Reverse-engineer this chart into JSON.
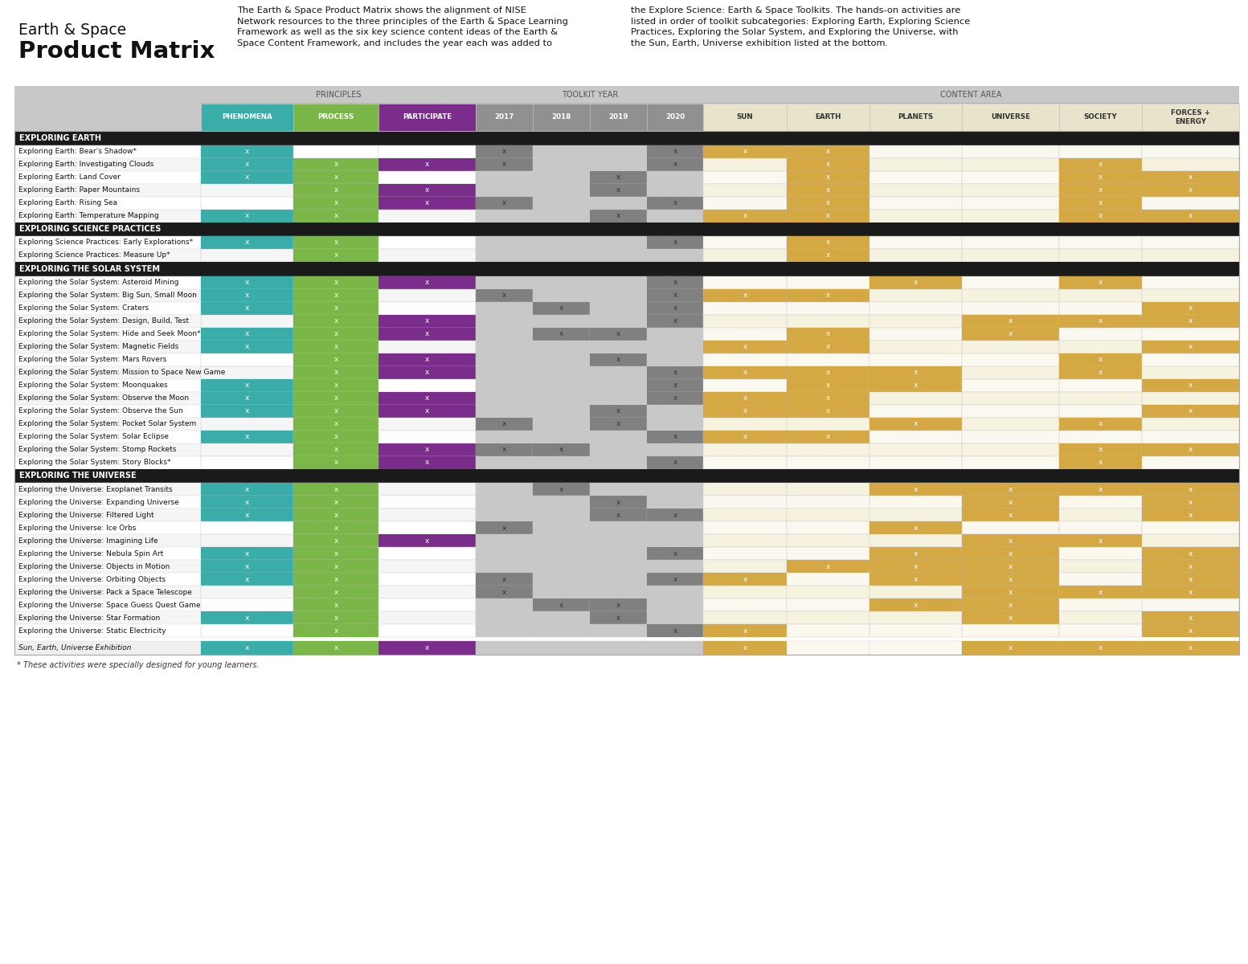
{
  "title_line1": "Earth & Space",
  "title_line2": "Product Matrix",
  "description_left": "The Earth & Space Product Matrix shows the alignment of NISE\nNetwork resources to the three principles of the Earth & Space Learning\nFramework as well as the six key science content ideas of the Earth &\nSpace Content Framework, and includes the year each was added to",
  "description_right": "the Explore Science: Earth & Space Toolkits. The hands-on activities are\nlisted in order of toolkit subcategories: Exploring Earth, Exploring Science\nPractices, Exploring the Solar System, and Exploring the Universe, with\nthe Sun, Earth, Universe exhibition listed at the bottom.",
  "footnote": "* These activities were specially designed for young learners.",
  "col_headers": [
    "PHENOMENA",
    "PROCESS",
    "PARTICIPATE",
    "2017",
    "2018",
    "2019",
    "2020",
    "SUN",
    "EARTH",
    "PLANETS",
    "UNIVERSE",
    "SOCIETY",
    "FORCES +\nENERGY"
  ],
  "col_header_colors": [
    "#3aada8",
    "#7ab648",
    "#7b2d8b",
    "#909090",
    "#909090",
    "#909090",
    "#909090",
    "#e8e4cc",
    "#e8e4cc",
    "#e8e4cc",
    "#e8e4cc",
    "#e8e4cc",
    "#e8e4cc"
  ],
  "group_bg": "#c8c8c8",
  "group_text_color": "#555555",
  "section_bg": "#1a1a1a",
  "section_text": "#ffffff",
  "exhibition_label": "Sun, Earth, Universe Exhibition",
  "exhibition_cells": [
    1,
    1,
    1,
    0,
    0,
    0,
    0,
    1,
    0,
    0,
    1,
    1,
    1
  ],
  "footnote_text": "* These activities were specially designed for young learners.",
  "earth_rows": [
    [
      "Exploring Earth: Bear’s Shadow*",
      [
        1,
        0,
        0,
        1,
        0,
        0,
        1,
        1,
        1,
        0,
        0,
        0,
        0
      ]
    ],
    [
      "Exploring Earth: Investigating Clouds",
      [
        1,
        1,
        1,
        1,
        0,
        0,
        1,
        0,
        1,
        0,
        0,
        1,
        0
      ]
    ],
    [
      "Exploring Earth: Land Cover",
      [
        1,
        1,
        0,
        0,
        0,
        1,
        0,
        0,
        1,
        0,
        0,
        1,
        1
      ]
    ],
    [
      "Exploring Earth: Paper Mountains",
      [
        0,
        1,
        1,
        0,
        0,
        1,
        0,
        0,
        1,
        0,
        0,
        1,
        1
      ]
    ],
    [
      "Exploring Earth: Rising Sea",
      [
        0,
        1,
        1,
        1,
        0,
        0,
        1,
        0,
        1,
        0,
        0,
        1,
        0
      ]
    ],
    [
      "Exploring Earth: Temperature Mapping",
      [
        1,
        1,
        0,
        0,
        0,
        1,
        0,
        1,
        1,
        0,
        0,
        1,
        1
      ]
    ]
  ],
  "science_rows": [
    [
      "Exploring Science Practices: Early Explorations*",
      [
        1,
        1,
        0,
        0,
        0,
        0,
        1,
        0,
        1,
        0,
        0,
        0,
        0
      ]
    ],
    [
      "Exploring Science Practices: Measure Up*",
      [
        0,
        1,
        0,
        0,
        0,
        0,
        0,
        0,
        1,
        0,
        0,
        0,
        0
      ]
    ]
  ],
  "solar_rows": [
    [
      "Exploring the Solar System: Asteroid Mining",
      [
        1,
        1,
        1,
        0,
        0,
        0,
        1,
        0,
        0,
        1,
        0,
        1,
        0
      ]
    ],
    [
      "Exploring the Solar System: Big Sun, Small Moon",
      [
        1,
        1,
        0,
        1,
        0,
        0,
        1,
        1,
        1,
        0,
        0,
        0,
        0
      ]
    ],
    [
      "Exploring the Solar System: Craters",
      [
        1,
        1,
        0,
        0,
        1,
        0,
        1,
        0,
        0,
        0,
        0,
        0,
        1
      ]
    ],
    [
      "Exploring the Solar System: Design, Build, Test",
      [
        0,
        1,
        1,
        0,
        0,
        0,
        1,
        0,
        0,
        0,
        1,
        1,
        1
      ]
    ],
    [
      "Exploring the Solar System: Hide and Seek Moon*",
      [
        1,
        1,
        1,
        0,
        1,
        1,
        0,
        0,
        1,
        0,
        1,
        0,
        0
      ]
    ],
    [
      "Exploring the Solar System: Magnetic Fields",
      [
        1,
        1,
        0,
        0,
        0,
        0,
        0,
        1,
        1,
        0,
        0,
        0,
        1
      ]
    ],
    [
      "Exploring the Solar System: Mars Rovers",
      [
        0,
        1,
        1,
        0,
        0,
        1,
        0,
        0,
        0,
        0,
        0,
        1,
        0
      ]
    ],
    [
      "Exploring the Solar System: Mission to Space New Game",
      [
        0,
        1,
        1,
        0,
        0,
        0,
        1,
        1,
        1,
        1,
        0,
        1,
        0
      ]
    ],
    [
      "Exploring the Solar System: Moonquakes",
      [
        1,
        1,
        0,
        0,
        0,
        0,
        1,
        0,
        1,
        1,
        0,
        0,
        1
      ]
    ],
    [
      "Exploring the Solar System: Observe the Moon",
      [
        1,
        1,
        1,
        0,
        0,
        0,
        1,
        1,
        1,
        0,
        0,
        0,
        0
      ]
    ],
    [
      "Exploring the Solar System: Observe the Sun",
      [
        1,
        1,
        1,
        0,
        0,
        1,
        0,
        1,
        1,
        0,
        0,
        0,
        1
      ]
    ],
    [
      "Exploring the Solar System: Pocket Solar System",
      [
        0,
        1,
        0,
        1,
        0,
        1,
        0,
        0,
        0,
        1,
        0,
        1,
        0
      ]
    ],
    [
      "Exploring the Solar System: Solar Eclipse",
      [
        1,
        1,
        0,
        0,
        0,
        0,
        1,
        1,
        1,
        0,
        0,
        0,
        0
      ]
    ],
    [
      "Exploring the Solar System: Stomp Rockets",
      [
        0,
        1,
        1,
        1,
        1,
        0,
        0,
        0,
        0,
        0,
        0,
        1,
        1
      ]
    ],
    [
      "Exploring the Solar System: Story Blocks*",
      [
        0,
        1,
        1,
        0,
        0,
        0,
        1,
        0,
        0,
        0,
        0,
        1,
        0
      ]
    ]
  ],
  "universe_rows": [
    [
      "Exploring the Universe: Exoplanet Transits",
      [
        1,
        1,
        0,
        0,
        1,
        0,
        0,
        0,
        0,
        1,
        1,
        1,
        1
      ]
    ],
    [
      "Exploring the Universe: Expanding Universe",
      [
        1,
        1,
        0,
        0,
        0,
        1,
        0,
        0,
        0,
        0,
        1,
        0,
        1
      ]
    ],
    [
      "Exploring the Universe: Filtered Light",
      [
        1,
        1,
        0,
        0,
        0,
        1,
        1,
        0,
        0,
        0,
        1,
        0,
        1
      ]
    ],
    [
      "Exploring the Universe: Ice Orbs",
      [
        0,
        1,
        0,
        1,
        0,
        0,
        0,
        0,
        0,
        1,
        0,
        0,
        0
      ]
    ],
    [
      "Exploring the Universe: Imagining Life",
      [
        0,
        1,
        1,
        0,
        0,
        0,
        0,
        0,
        0,
        0,
        1,
        1,
        0
      ]
    ],
    [
      "Exploring the Universe: Nebula Spin Art",
      [
        1,
        1,
        0,
        0,
        0,
        0,
        1,
        0,
        0,
        1,
        1,
        0,
        1
      ]
    ],
    [
      "Exploring the Universe: Objects in Motion",
      [
        1,
        1,
        0,
        0,
        0,
        0,
        0,
        0,
        1,
        1,
        1,
        0,
        1
      ]
    ],
    [
      "Exploring the Universe: Orbiting Objects",
      [
        1,
        1,
        0,
        1,
        0,
        0,
        1,
        1,
        0,
        1,
        1,
        0,
        1
      ]
    ],
    [
      "Exploring the Universe: Pack a Space Telescope",
      [
        0,
        1,
        0,
        1,
        0,
        0,
        0,
        0,
        0,
        0,
        1,
        1,
        1
      ]
    ],
    [
      "Exploring the Universe: Space Guess Quest Game",
      [
        0,
        1,
        0,
        0,
        1,
        1,
        0,
        0,
        0,
        1,
        1,
        0,
        0
      ]
    ],
    [
      "Exploring the Universe: Star Formation",
      [
        1,
        1,
        0,
        0,
        0,
        1,
        0,
        0,
        0,
        0,
        1,
        0,
        1
      ]
    ],
    [
      "Exploring the Universe: Static Electricity",
      [
        0,
        1,
        0,
        0,
        0,
        0,
        1,
        1,
        0,
        0,
        0,
        0,
        1
      ]
    ]
  ]
}
